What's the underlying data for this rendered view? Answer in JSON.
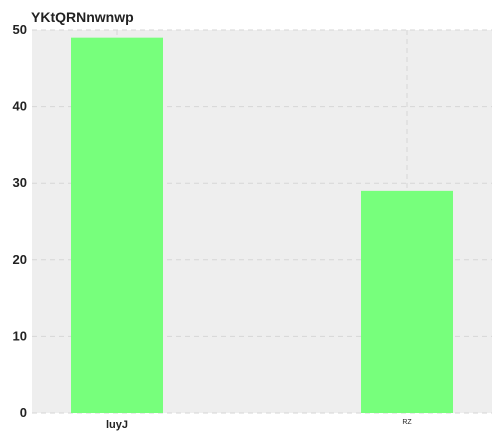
{
  "chart_data": {
    "type": "bar",
    "title": "YKtQRNnwnwp",
    "categories": [
      "luyJ",
      "RZ"
    ],
    "values": [
      49,
      29
    ],
    "xlabel": "",
    "ylabel": "",
    "ylim": [
      0,
      50
    ],
    "yticks": [
      "0",
      "10",
      "20",
      "30",
      "40",
      "50"
    ],
    "grid": true,
    "legend": "none",
    "colors": {
      "bar": "#77ff7c",
      "plot_background": "#eeeeee",
      "grid": "#d6d6d6",
      "text": "#222222"
    }
  }
}
